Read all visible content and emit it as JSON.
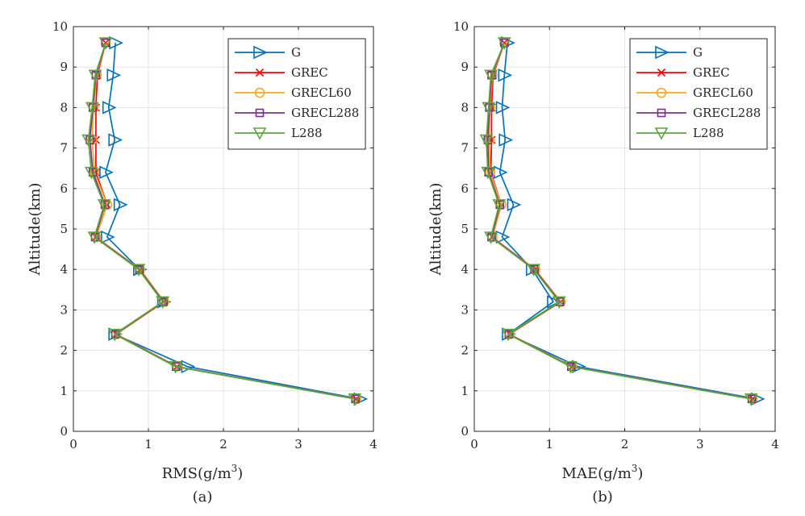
{
  "chart_data": [
    {
      "type": "line",
      "panel_label": "(a)",
      "xlabel": "RMS(g/m",
      "xlabel_sup": "3",
      "xlabel_tail": ")",
      "ylabel": "Altitude(km)",
      "xlim": [
        0,
        4
      ],
      "ylim": [
        0,
        10
      ],
      "xticks": [
        "0",
        "1",
        "2",
        "3",
        "4"
      ],
      "yticks": [
        "0",
        "1",
        "2",
        "3",
        "4",
        "5",
        "6",
        "7",
        "8",
        "9",
        "10"
      ],
      "grid": true,
      "legend_position": "top-right",
      "altitudes": [
        0.8,
        1.6,
        2.4,
        3.2,
        4.0,
        4.8,
        5.6,
        6.4,
        7.2,
        8.0,
        8.8,
        9.6
      ],
      "series": [
        {
          "name": "G",
          "color": "#0072BD",
          "marker": "triangle-right",
          "values": [
            3.82,
            1.52,
            0.55,
            1.2,
            0.88,
            0.45,
            0.62,
            0.43,
            0.55,
            0.47,
            0.53,
            0.56
          ]
        },
        {
          "name": "GREC",
          "color": "#FF0000",
          "marker": "x",
          "values": [
            3.77,
            1.38,
            0.57,
            1.21,
            0.89,
            0.3,
            0.45,
            0.3,
            0.3,
            0.3,
            0.32,
            0.43
          ]
        },
        {
          "name": "GRECL60",
          "color": "#F5A623",
          "marker": "circle",
          "values": [
            3.77,
            1.38,
            0.57,
            1.21,
            0.89,
            0.3,
            0.45,
            0.28,
            0.25,
            0.27,
            0.31,
            0.43
          ]
        },
        {
          "name": "GRECL288",
          "color": "#7E2F8E",
          "marker": "square",
          "values": [
            3.76,
            1.37,
            0.56,
            1.2,
            0.88,
            0.29,
            0.42,
            0.26,
            0.22,
            0.26,
            0.3,
            0.43
          ]
        },
        {
          "name": "L288",
          "color": "#59A839",
          "marker": "triangle-down",
          "values": [
            3.75,
            1.36,
            0.55,
            1.19,
            0.87,
            0.28,
            0.41,
            0.24,
            0.2,
            0.25,
            0.29,
            0.43
          ]
        }
      ]
    },
    {
      "type": "line",
      "panel_label": "(b)",
      "xlabel": "MAE(g/m",
      "xlabel_sup": "3",
      "xlabel_tail": ")",
      "ylabel": "Altitude(km)",
      "xlim": [
        0,
        4
      ],
      "ylim": [
        0,
        10
      ],
      "xticks": [
        "0",
        "1",
        "2",
        "3",
        "4"
      ],
      "yticks": [
        "0",
        "1",
        "2",
        "3",
        "4",
        "5",
        "6",
        "7",
        "8",
        "9",
        "10"
      ],
      "grid": true,
      "legend_position": "top-right",
      "altitudes": [
        0.8,
        1.6,
        2.4,
        3.2,
        4.0,
        4.8,
        5.6,
        6.4,
        7.2,
        8.0,
        8.8,
        9.6
      ],
      "series": [
        {
          "name": "G",
          "color": "#0072BD",
          "marker": "triangle-right",
          "values": [
            3.76,
            1.38,
            0.45,
            1.05,
            0.77,
            0.37,
            0.52,
            0.34,
            0.41,
            0.37,
            0.4,
            0.44
          ]
        },
        {
          "name": "GREC",
          "color": "#FF0000",
          "marker": "x",
          "values": [
            3.7,
            1.3,
            0.47,
            1.15,
            0.81,
            0.24,
            0.36,
            0.22,
            0.23,
            0.23,
            0.25,
            0.4
          ]
        },
        {
          "name": "GRECL60",
          "color": "#F5A623",
          "marker": "circle",
          "values": [
            3.7,
            1.3,
            0.47,
            1.15,
            0.81,
            0.24,
            0.36,
            0.21,
            0.2,
            0.21,
            0.24,
            0.4
          ]
        },
        {
          "name": "GRECL288",
          "color": "#7E2F8E",
          "marker": "square",
          "values": [
            3.69,
            1.29,
            0.46,
            1.14,
            0.8,
            0.23,
            0.34,
            0.19,
            0.18,
            0.2,
            0.23,
            0.4
          ]
        },
        {
          "name": "L288",
          "color": "#59A839",
          "marker": "triangle-down",
          "values": [
            3.68,
            1.28,
            0.45,
            1.13,
            0.79,
            0.22,
            0.33,
            0.18,
            0.16,
            0.19,
            0.22,
            0.4
          ]
        }
      ]
    }
  ]
}
